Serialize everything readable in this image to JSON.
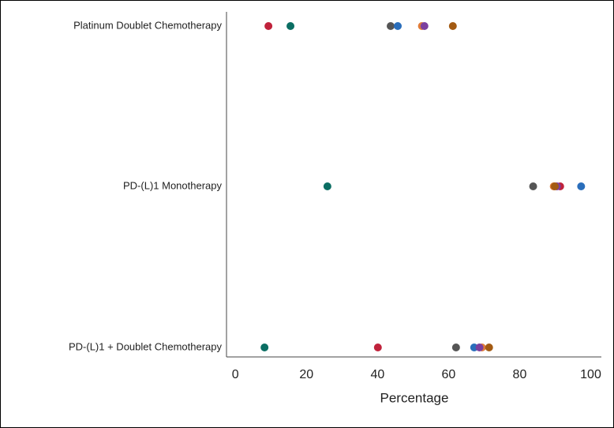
{
  "chart_data": {
    "type": "dot",
    "x_label": "Percentage",
    "categories": [
      "Platinum Doublet Chemotherapy",
      "PD-(L)1 Monotherapy",
      "PD-(L)1 + Doublet Chemotherapy"
    ],
    "series": [
      {
        "color": "#c0223b",
        "values": [
          9.3,
          91.4,
          40.1
        ]
      },
      {
        "color": "#0b6e63",
        "values": [
          15.5,
          25.9,
          8.2
        ]
      },
      {
        "color": "#555555",
        "values": [
          43.7,
          83.8,
          62.1
        ]
      },
      {
        "color": "#2a6ebb",
        "values": [
          45.7,
          97.3,
          67.2
        ]
      },
      {
        "color": "#e07b39",
        "values": [
          52.5,
          89.6,
          69.4
        ]
      },
      {
        "color": "#7b3f9e",
        "values": [
          53.2,
          90.5,
          68.7
        ]
      },
      {
        "color": "#a35a12",
        "values": [
          61.2,
          89.9,
          71.4
        ]
      }
    ],
    "xlim": [
      -2.5,
      103
    ],
    "xticks": [
      0,
      20,
      40,
      60,
      80,
      100
    ]
  }
}
